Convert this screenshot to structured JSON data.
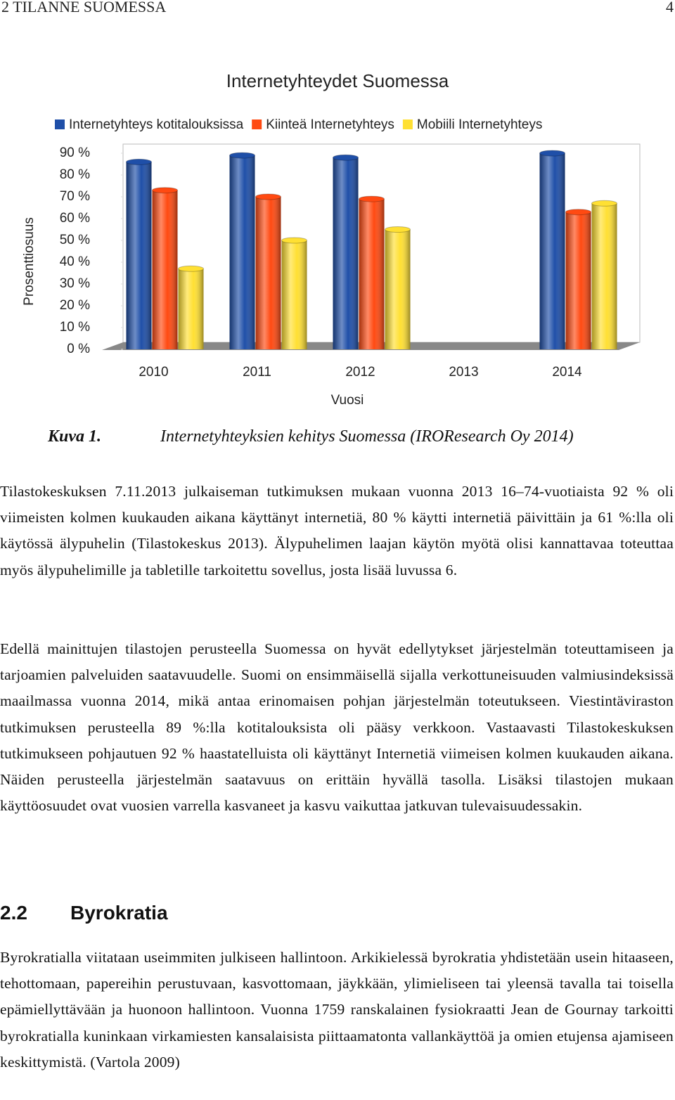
{
  "header": {
    "title": "2 TILANNE SUOMESSA",
    "page": "4"
  },
  "chart_data": {
    "type": "bar",
    "title": "Internetyhteydet Suomessa",
    "categories": [
      "2010",
      "2011",
      "2012",
      "2013",
      "2014"
    ],
    "series": [
      {
        "name": "Internetyhteys kotitalouksissa",
        "color": "#1f4fa8",
        "values": [
          86,
          89,
          88,
          null,
          90
        ]
      },
      {
        "name": "Kiinteä Internetyhteys",
        "color": "#ff4a12",
        "values": [
          73,
          70,
          69,
          null,
          63
        ]
      },
      {
        "name": "Mobiili Internetyhteys",
        "color": "#ffe033",
        "values": [
          37,
          50,
          55,
          null,
          67
        ]
      }
    ],
    "xlabel": "Vuosi",
    "ylabel": "Prosenttiosuus",
    "ylim": [
      0,
      90
    ],
    "yticks": [
      {
        "value": 0,
        "label": "0 %"
      },
      {
        "value": 10,
        "label": "10 %"
      },
      {
        "value": 20,
        "label": "20 %"
      },
      {
        "value": 30,
        "label": "30 %"
      },
      {
        "value": 40,
        "label": "40 %"
      },
      {
        "value": 50,
        "label": "50 %"
      },
      {
        "value": 60,
        "label": "60 %"
      },
      {
        "value": 70,
        "label": "70 %"
      },
      {
        "value": 80,
        "label": "80 %"
      },
      {
        "value": 90,
        "label": "90 %"
      }
    ],
    "legend": "top"
  },
  "caption": {
    "label": "Kuva 1.",
    "text": "Internetyhteyksien kehitys Suomessa (IROResearch Oy 2014)"
  },
  "paragraphs": [
    "Tilastokeskuksen 7.11.2013 julkaiseman tutkimuksen mukaan vuonna 2013 16–74-vuotiaista 92 % oli viimeisten kolmen kuukauden aikana käyttänyt internetiä, 80 % käytti internetiä päivittäin ja 61 %:lla oli käytössä älypuhelin (Tilastokeskus 2013). Älypuhelimen laajan käytön myötä olisi kannattavaa toteuttaa myös älypuhelimille ja tabletille tarkoitettu sovellus, josta lisää luvussa 6.",
    "Edellä mainittujen tilastojen perusteella Suomessa on hyvät edellytykset järjestelmän toteuttamiseen ja tarjoamien palveluiden saatavuudelle. Suomi on ensimmäisellä sijalla verkottuneisuuden valmiusindeksissä maailmassa vuonna 2014, mikä antaa erinomaisen pohjan järjestelmän toteutukseen. Viestintäviraston tutkimuksen perusteella 89 %:lla kotitalouksista oli pääsy verkkoon. Vastaavasti Tilastokeskuksen tutkimukseen pohjautuen 92 % haastatelluista oli käyttänyt Internetiä viimeisen kolmen kuukauden aikana. Näiden perusteella järjestelmän saatavuus on erittäin hyvällä tasolla. Lisäksi tilastojen mukaan käyttöosuudet ovat vuosien varrella kasvaneet ja kasvu vaikuttaa jatkuvan tulevaisuudessakin."
  ],
  "section": {
    "number": "2.2",
    "title": "Byrokratia",
    "paragraphs": [
      "Byrokratialla viitataan useimmiten julkiseen hallintoon. Arkikielessä byrokratia yhdistetään usein hitaaseen, tehottomaan, papereihin perustuvaan, kasvottomaan, jäykkään, ylimieliseen tai yleensä tavalla tai toisella epämiellyttävään ja huonoon hallintoon. Vuonna 1759 ranskalainen fysiokraatti Jean de Gournay tarkoitti byrokratialla kuninkaan virkamiesten kansalaisista piittaamatonta vallankäyttöä ja omien etujensa ajamiseen keskittymistä. (Vartola 2009)"
    ]
  }
}
